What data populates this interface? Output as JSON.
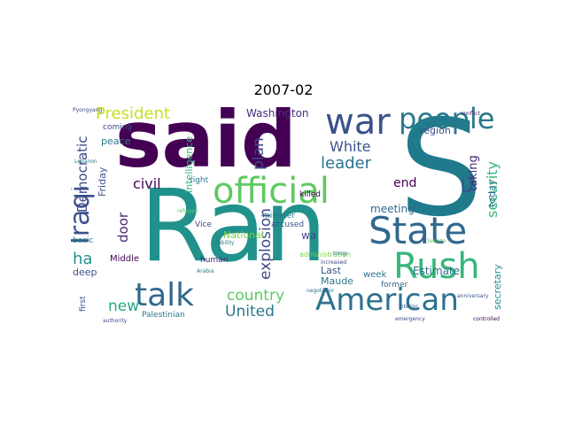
{
  "title": "2007-02",
  "words": [
    {
      "text": "Ran",
      "color": "#21918c"
    },
    {
      "text": "said",
      "color": "#440154"
    },
    {
      "text": "S",
      "color": "#1f7a8c"
    },
    {
      "text": "war",
      "color": "#3b528b"
    },
    {
      "text": "people",
      "color": "#2a788e"
    },
    {
      "text": "official",
      "color": "#5ec962"
    },
    {
      "text": "State",
      "color": "#31688e"
    },
    {
      "text": "Iraqi",
      "color": "#3b528b"
    },
    {
      "text": "Rush",
      "color": "#35b779"
    },
    {
      "text": "talk",
      "color": "#31688e"
    },
    {
      "text": "American",
      "color": "#2c728e"
    },
    {
      "text": "President",
      "color": "#c8e020"
    },
    {
      "text": "White",
      "color": "#3b528b"
    },
    {
      "text": "leader",
      "color": "#2c728e"
    },
    {
      "text": "country",
      "color": "#5ec962"
    },
    {
      "text": "United",
      "color": "#2a788e"
    },
    {
      "text": "Democratic",
      "color": "#3e4a89"
    },
    {
      "text": "civil",
      "color": "#440154"
    },
    {
      "text": "security",
      "color": "#35b779"
    },
    {
      "text": "taking",
      "color": "#482878"
    },
    {
      "text": "explosion",
      "color": "#3e4a89"
    },
    {
      "text": "new",
      "color": "#22a884"
    },
    {
      "text": "ha",
      "color": "#21918c"
    },
    {
      "text": "door",
      "color": "#482878"
    },
    {
      "text": "plan",
      "color": "#3e4a89"
    },
    {
      "text": "Washington",
      "color": "#472d7b"
    },
    {
      "text": "end",
      "color": "#440154"
    },
    {
      "text": "U",
      "color": "#3b528b"
    },
    {
      "text": "meeting",
      "color": "#31688e"
    },
    {
      "text": "region",
      "color": "#3e4a89"
    },
    {
      "text": "Intelligence",
      "color": "#35b779"
    },
    {
      "text": "Friday",
      "color": "#3b528b"
    },
    {
      "text": "peace",
      "color": "#2a788e"
    },
    {
      "text": "coming",
      "color": "#3e4a89"
    },
    {
      "text": "week",
      "color": "#2a788e"
    },
    {
      "text": "Estimate",
      "color": "#2c728e"
    },
    {
      "text": "Last",
      "color": "#3b528b"
    },
    {
      "text": "Maude",
      "color": "#2a788e"
    },
    {
      "text": "former",
      "color": "#31688e"
    },
    {
      "text": "secretary",
      "color": "#21918c"
    },
    {
      "text": "today",
      "color": "#2c728e"
    },
    {
      "text": "National",
      "color": "#7ad151"
    },
    {
      "text": "wa",
      "color": "#3e4a89"
    },
    {
      "text": "Vice",
      "color": "#3e4a89"
    },
    {
      "text": "minister",
      "color": "#2a788e"
    },
    {
      "text": "accused",
      "color": "#3b528b"
    },
    {
      "text": "human",
      "color": "#482878"
    },
    {
      "text": "Middle",
      "color": "#440154"
    },
    {
      "text": "deep",
      "color": "#3b528b"
    },
    {
      "text": "basic",
      "color": "#2a788e"
    },
    {
      "text": "first",
      "color": "#3e4a89"
    },
    {
      "text": "Palestinian",
      "color": "#2c728e"
    },
    {
      "text": "killed",
      "color": "#440154"
    },
    {
      "text": "right",
      "color": "#2a788e"
    },
    {
      "text": "administration",
      "color": "#7ad151"
    },
    {
      "text": "Pyongyang",
      "color": "#3e4a89"
    },
    {
      "text": "Lebanon",
      "color": "#2a788e"
    },
    {
      "text": "refugee",
      "color": "#5ec962"
    },
    {
      "text": "Arabia",
      "color": "#2a788e"
    },
    {
      "text": "authority",
      "color": "#3e4a89"
    },
    {
      "text": "Interior",
      "color": "#3b528b"
    },
    {
      "text": "troop",
      "color": "#2a788e"
    },
    {
      "text": "increased",
      "color": "#3e4a89"
    },
    {
      "text": "negotiator",
      "color": "#2c728e"
    },
    {
      "text": "anniversary",
      "color": "#3b528b"
    },
    {
      "text": "controlled",
      "color": "#440154"
    },
    {
      "text": "emergency",
      "color": "#3e4a89"
    },
    {
      "text": "conflict",
      "color": "#482878"
    },
    {
      "text": "ability",
      "color": "#2a788e"
    },
    {
      "text": "Senate",
      "color": "#5ec962"
    }
  ]
}
